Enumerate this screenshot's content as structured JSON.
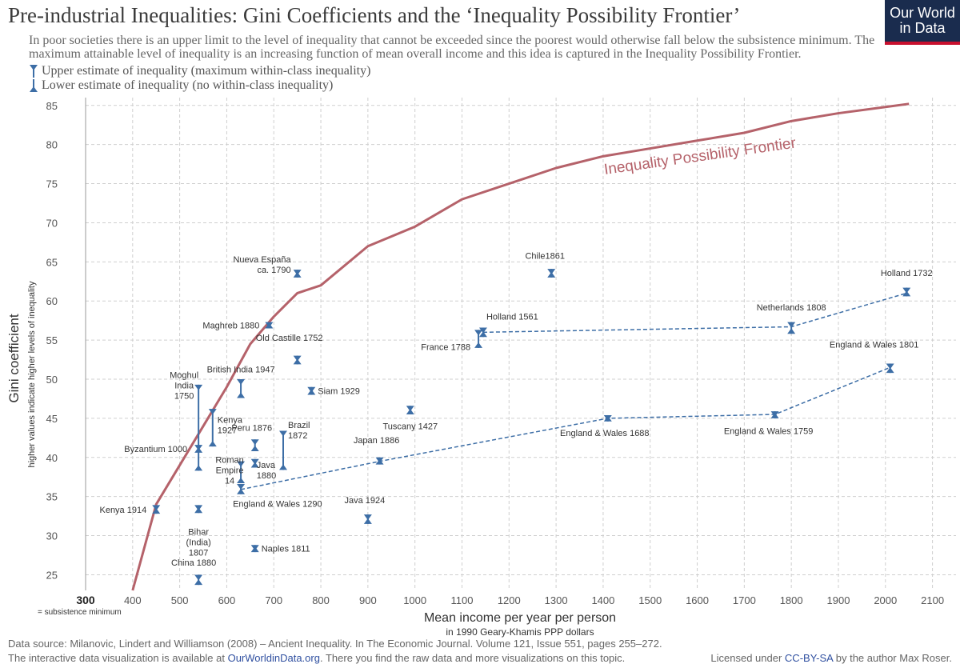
{
  "header": {
    "title": "Pre-industrial Inequalities: Gini Coefficients and the ‘Inequality Possibility Frontier’",
    "subtitle": "In poor societies there is an upper limit to the level of inequality that cannot be exceeded since the poorest would otherwise fall below the subsistence minimum. The maximum attainable level of inequality is an increasing function of mean overall income and this idea is captured in the Inequality Possibility Frontier.",
    "legend_upper": "Upper estimate of inequality (maximum within-class inequality)",
    "legend_lower": "Lower estimate of inequality (no within-class inequality)"
  },
  "logo": {
    "line1": "Our World",
    "line2": "in Data",
    "bg_color": "#1a2c4e",
    "accent_color": "#c8102e"
  },
  "footer": {
    "source": "Data source: Milanovic, Lindert and Williamson (2008) – Ancient Inequality. In The Economic Journal. Volume 121, Issue 551, pages 255–272.",
    "line2_pre": "The interactive data visualization is available at ",
    "line2_link": "OurWorldinData.org",
    "line2_post": ". There you find the raw data and more visualizations on this topic.",
    "license_pre": "Licensed under ",
    "license_link": "CC-BY-SA",
    "license_post": " by the author Max Roser."
  },
  "chart_data": {
    "type": "scatter",
    "xlabel": "Mean income per year per person",
    "xlabel_sub": "in 1990 Geary-Khamis PPP dollars",
    "ylabel": "Gini coefficient",
    "ylabel_sub": "higher values indicate higher levels of inequality",
    "xlim": [
      300,
      2150
    ],
    "ylim": [
      23,
      86
    ],
    "grid": true,
    "x_ticks": [
      400,
      500,
      600,
      700,
      800,
      900,
      1000,
      1100,
      1200,
      1300,
      1400,
      1500,
      1600,
      1700,
      1800,
      1900,
      2000,
      2100
    ],
    "y_ticks": [
      25,
      30,
      35,
      40,
      45,
      50,
      55,
      60,
      65,
      70,
      75,
      80,
      85
    ],
    "subsistence_tick": "300",
    "subsistence_note": "= subsistence minimum",
    "marker_color": "#3d6ea6",
    "frontier": {
      "label": "Inequality Possibility Frontier",
      "color": "#b5626a",
      "points": [
        [
          400,
          23
        ],
        [
          450,
          34
        ],
        [
          500,
          39
        ],
        [
          550,
          44
        ],
        [
          600,
          49
        ],
        [
          650,
          54.5
        ],
        [
          700,
          58
        ],
        [
          750,
          61
        ],
        [
          800,
          62
        ],
        [
          900,
          67
        ],
        [
          1000,
          69.5
        ],
        [
          1100,
          73
        ],
        [
          1200,
          75
        ],
        [
          1300,
          77
        ],
        [
          1400,
          78.5
        ],
        [
          1500,
          79.5
        ],
        [
          1600,
          80.5
        ],
        [
          1700,
          81.5
        ],
        [
          1800,
          83
        ],
        [
          1900,
          84
        ],
        [
          2000,
          84.8
        ],
        [
          2050,
          85.2
        ]
      ]
    },
    "points": [
      {
        "label": "Kenya 1914",
        "x": 450,
        "low": 32.8,
        "high": 33.9
      },
      {
        "label": "Byzantium 1000",
        "x": 540,
        "low": 40.6,
        "high": 41.6
      },
      {
        "label": "Moghul India 1750",
        "x": 540,
        "low": 38.3,
        "high": 49.3
      },
      {
        "label": "Bihar (India) 1807",
        "x": 540,
        "low": 32.9,
        "high": 33.9
      },
      {
        "label": "China 1880",
        "x": 540,
        "low": 23.7,
        "high": 25.0
      },
      {
        "label": "Kenya 1927",
        "x": 570,
        "low": 41.4,
        "high": 46.2
      },
      {
        "label": "British India 1947",
        "x": 630,
        "low": 47.6,
        "high": 50.0
      },
      {
        "label": "Roman Empire 14",
        "x": 630,
        "low": 36.7,
        "high": 39.5
      },
      {
        "label": "England & Wales 1290",
        "x": 630,
        "low": 35.3,
        "high": 36.6
      },
      {
        "label": "Peru 1876",
        "x": 660,
        "low": 40.8,
        "high": 42.3
      },
      {
        "label": "Java 1880",
        "x": 660,
        "low": 38.7,
        "high": 39.8
      },
      {
        "label": "Naples 1811",
        "x": 660,
        "low": 27.9,
        "high": 28.8
      },
      {
        "label": "Maghreb 1880",
        "x": 690,
        "low": 56.5,
        "high": 57.3
      },
      {
        "label": "Brazil 1872",
        "x": 720,
        "low": 38.4,
        "high": 43.4
      },
      {
        "label": "Nueva España ca. 1790",
        "x": 750,
        "low": 63.0,
        "high": 64.0
      },
      {
        "label": "Old Castille 1752",
        "x": 750,
        "low": 51.9,
        "high": 53.0
      },
      {
        "label": "Siam 1929",
        "x": 780,
        "low": 48.0,
        "high": 49.0
      },
      {
        "label": "Java 1924",
        "x": 900,
        "low": 31.5,
        "high": 32.7
      },
      {
        "label": "Japan 1886",
        "x": 925,
        "low": 39.1,
        "high": 40.0
      },
      {
        "label": "Tuscany 1427",
        "x": 990,
        "low": 45.5,
        "high": 46.6
      },
      {
        "label": "France 1788",
        "x": 1135,
        "low": 54.0,
        "high": 56.3
      },
      {
        "label": "Holland 1561",
        "x": 1145,
        "low": 55.4,
        "high": 56.6
      },
      {
        "label": "Chile1861",
        "x": 1290,
        "low": 63.0,
        "high": 64.1
      },
      {
        "label": "England & Wales 1688",
        "x": 1410,
        "low": 44.6,
        "high": 45.4
      },
      {
        "label": "England & Wales 1759",
        "x": 1765,
        "low": 45.0,
        "high": 45.9
      },
      {
        "label": "Netherlands 1808",
        "x": 1800,
        "low": 55.8,
        "high": 57.3
      },
      {
        "label": "England & Wales 1801",
        "x": 2010,
        "low": 50.8,
        "high": 52.0
      },
      {
        "label": "Holland 1732",
        "x": 2045,
        "low": 60.6,
        "high": 61.7
      }
    ],
    "series": [
      {
        "points": [
          [
            1145,
            56.0
          ],
          [
            1800,
            56.7
          ],
          [
            2045,
            61.0
          ]
        ]
      },
      {
        "points": [
          [
            630,
            35.9
          ],
          [
            925,
            39.5
          ],
          [
            1410,
            45.0
          ],
          [
            1765,
            45.5
          ],
          [
            2010,
            51.5
          ]
        ]
      }
    ]
  }
}
